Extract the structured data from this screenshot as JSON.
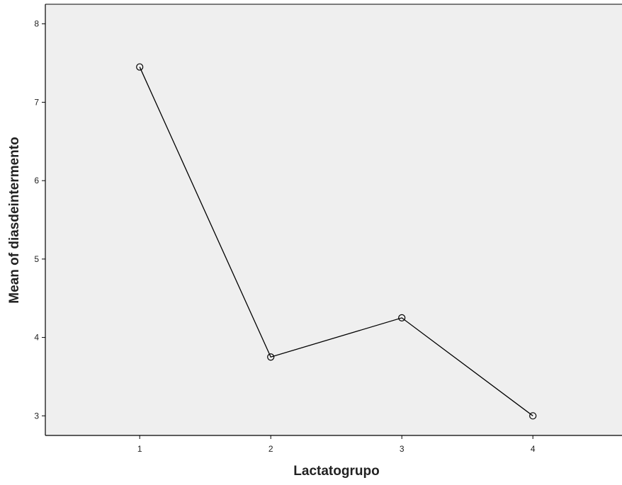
{
  "chart_data": {
    "type": "line",
    "title": "",
    "xlabel": "Lactatogrupo",
    "ylabel": "Mean of diasdeintermento",
    "x": [
      1,
      2,
      3,
      4
    ],
    "x_tick_labels": [
      "1",
      "2",
      "3",
      "4"
    ],
    "y_ticks": [
      3,
      4,
      5,
      6,
      7,
      8
    ],
    "ylim": [
      2.75,
      8.25
    ],
    "xlim": [
      0.28,
      4.68
    ],
    "grid": false,
    "series": [
      {
        "values": [
          7.45,
          3.75,
          4.25,
          3.0
        ],
        "color": "#000000",
        "marker": "open-circle"
      }
    ],
    "colors": {
      "plot_background": "#efefef",
      "axis": "#000000",
      "text": "#222222"
    }
  }
}
